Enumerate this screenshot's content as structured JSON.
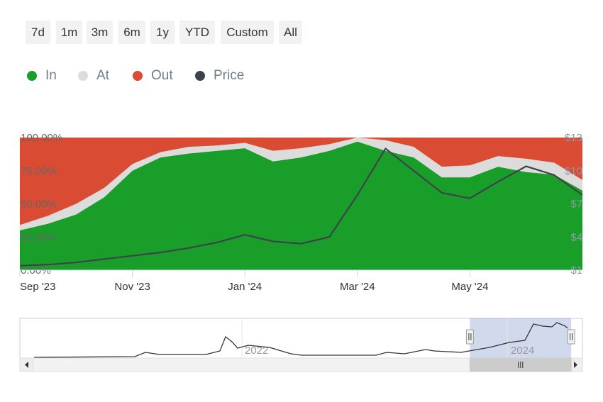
{
  "range_selector": {
    "buttons": [
      "7d",
      "1m",
      "3m",
      "6m",
      "1y",
      "YTD",
      "Custom",
      "All"
    ]
  },
  "legend": [
    {
      "label": "In",
      "color": "#1a9e2a",
      "icon": "circle-icon"
    },
    {
      "label": "At",
      "color": "#dcdcdc",
      "icon": "circle-icon"
    },
    {
      "label": "Out",
      "color": "#d94c33",
      "icon": "circle-icon"
    },
    {
      "label": "Price",
      "color": "#3d434a",
      "icon": "circle-icon"
    }
  ],
  "navigator": {
    "year_labels": [
      "2022",
      "2024"
    ],
    "scroll_left_icon": "arrow-left-icon",
    "scroll_right_icon": "arrow-right-icon",
    "grip_icon": "grip-icon",
    "selection_start_fraction": 0.8,
    "selection_end_fraction": 0.98
  },
  "chart_data": {
    "type": "area",
    "stacked_percent": true,
    "x_tick_labels": [
      "Sep '23",
      "Nov '23",
      "Jan '24",
      "Mar '24",
      "May '24"
    ],
    "x": [
      "Sep 1",
      "Sep 15",
      "Oct 1",
      "Oct 15",
      "Nov 1",
      "Nov 15",
      "Dec 1",
      "Dec 15",
      "Jan 1",
      "Jan 15",
      "Feb 1",
      "Feb 15",
      "Mar 1",
      "Mar 15",
      "Apr 1",
      "Apr 15",
      "May 1",
      "May 15",
      "Jun 1",
      "Jun 15",
      "Jun 30"
    ],
    "y_left_ticks": [
      "0.00%",
      "25.00%",
      "50.00%",
      "75.00%",
      "100.00%"
    ],
    "y_left_range": [
      0,
      100
    ],
    "y_right_ticks": [
      "$1",
      "$4",
      "$7",
      "$10",
      "$13"
    ],
    "y_right_range": [
      1,
      13
    ],
    "series": [
      {
        "name": "In",
        "color": "#1a9e2a",
        "values": [
          30,
          35,
          42,
          55,
          75,
          85,
          88,
          90,
          92,
          82,
          85,
          90,
          97,
          90,
          85,
          70,
          70,
          78,
          74,
          72,
          60
        ]
      },
      {
        "name": "At",
        "color": "#dcdcdc",
        "values": [
          4,
          6,
          8,
          7,
          5,
          4,
          5,
          4,
          4,
          8,
          7,
          5,
          3,
          8,
          8,
          8,
          9,
          8,
          10,
          9,
          8
        ]
      },
      {
        "name": "Out",
        "color": "#d94c33",
        "values": [
          66,
          59,
          50,
          38,
          20,
          11,
          7,
          6,
          4,
          10,
          8,
          5,
          0,
          2,
          7,
          22,
          21,
          14,
          16,
          19,
          32
        ]
      },
      {
        "name": "Price",
        "color": "#3d434a",
        "axis": "right",
        "values": [
          1.4,
          1.5,
          1.7,
          2.0,
          2.3,
          2.6,
          3.0,
          3.5,
          4.2,
          3.6,
          3.4,
          4.0,
          7.8,
          12.0,
          10.0,
          8.0,
          7.5,
          9.0,
          10.4,
          9.6,
          7.8
        ]
      }
    ],
    "grid": false,
    "legend_position": "top-left"
  }
}
